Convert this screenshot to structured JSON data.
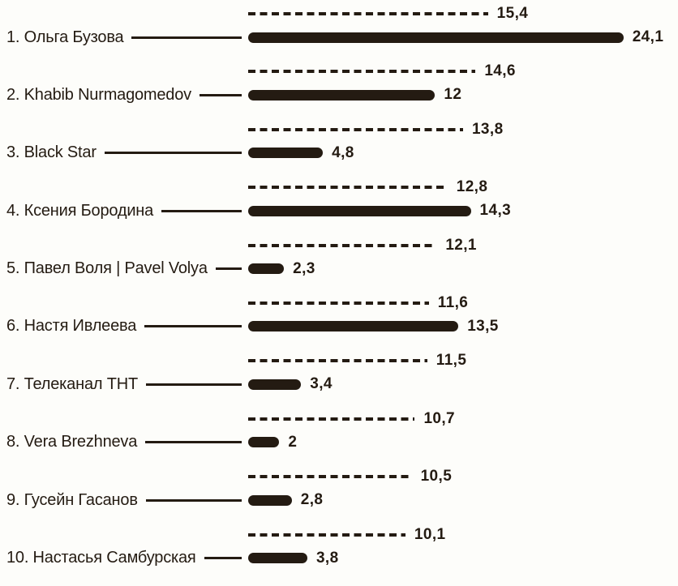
{
  "page": {
    "background_color": "#fdfdfa",
    "ink_color": "#241b12"
  },
  "chart_data": {
    "type": "bar",
    "orientation": "horizontal",
    "title": "",
    "xlabel": "",
    "ylabel": "",
    "xlim": [
      0,
      25
    ],
    "grid": false,
    "legend_position": "none",
    "categories": [
      "1. Ольга Бузова",
      "2. Khabib Nurmagomedov",
      "3. Black Star",
      "4. Ксения Бородина",
      "5. Павел Воля | Pavel Volya",
      "6. Настя Ивлеева",
      "7. Телеканал ТНТ",
      "8. Vera Brezhneva",
      "9. Гусейн Гасанов",
      "10. Настасья Самбурская"
    ],
    "series": [
      {
        "name": "dashed-bar-series",
        "style": "dashed",
        "values": [
          15.4,
          14.6,
          13.8,
          12.8,
          12.1,
          11.6,
          11.5,
          10.7,
          10.5,
          10.1
        ],
        "labels": [
          "15,4",
          "14,6",
          "13,8",
          "12,8",
          "12,1",
          "11,6",
          "11,5",
          "10,7",
          "10,5",
          "10,1"
        ]
      },
      {
        "name": "solid-bar-series",
        "style": "solid",
        "values": [
          24.1,
          12,
          4.8,
          14.3,
          2.3,
          13.5,
          3.4,
          2,
          2.8,
          3.8
        ],
        "labels": [
          "24,1",
          "12",
          "4,8",
          "14,3",
          "2,3",
          "13,5",
          "3,4",
          "2",
          "2,8",
          "3,8"
        ]
      }
    ]
  },
  "rows": [
    {
      "label": "1. Ольга Бузова",
      "dashed_label": "15,4",
      "dashed_value": 15.4,
      "solid_label": "24,1",
      "solid_value": 24.1
    },
    {
      "label": "2. Khabib Nurmagomedov",
      "dashed_label": "14,6",
      "dashed_value": 14.6,
      "solid_label": "12",
      "solid_value": 12
    },
    {
      "label": "3. Black Star",
      "dashed_label": "13,8",
      "dashed_value": 13.8,
      "solid_label": "4,8",
      "solid_value": 4.8
    },
    {
      "label": "4. Ксения Бородина",
      "dashed_label": "12,8",
      "dashed_value": 12.8,
      "solid_label": "14,3",
      "solid_value": 14.3
    },
    {
      "label": "5. Павел Воля | Pavel Volya",
      "dashed_label": "12,1",
      "dashed_value": 12.1,
      "solid_label": "2,3",
      "solid_value": 2.3
    },
    {
      "label": "6. Настя Ивлеева",
      "dashed_label": "11,6",
      "dashed_value": 11.6,
      "solid_label": "13,5",
      "solid_value": 13.5
    },
    {
      "label": "7. Телеканал ТНТ",
      "dashed_label": "11,5",
      "dashed_value": 11.5,
      "solid_label": "3,4",
      "solid_value": 3.4
    },
    {
      "label": "8. Vera Brezhneva",
      "dashed_label": "10,7",
      "dashed_value": 10.7,
      "solid_label": "2",
      "solid_value": 2
    },
    {
      "label": "9. Гусейн Гасанов",
      "dashed_label": "10,5",
      "dashed_value": 10.5,
      "solid_label": "2,8",
      "solid_value": 2.8
    },
    {
      "label": "10. Настасья Самбурская",
      "dashed_label": "10,1",
      "dashed_value": 10.1,
      "solid_label": "3,8",
      "solid_value": 3.8
    }
  ]
}
